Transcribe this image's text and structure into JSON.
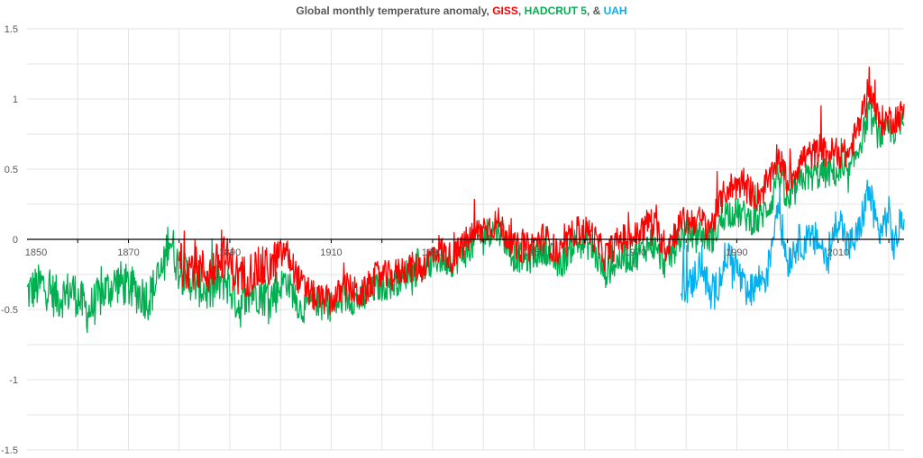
{
  "chart_data": {
    "type": "line",
    "title_parts": [
      {
        "text": "Global monthly temperature anomaly, ",
        "color": "#595959"
      },
      {
        "text": "GISS",
        "color": "#ff0000"
      },
      {
        "text": ", ",
        "color": "#595959"
      },
      {
        "text": "HADCRUT 5",
        "color": "#00b050"
      },
      {
        "text": ", & ",
        "color": "#595959"
      },
      {
        "text": "UAH",
        "color": "#00b0f0"
      }
    ],
    "xlim": [
      1850,
      2023
    ],
    "ylim": [
      -1.5,
      1.5
    ],
    "y_ticks": [
      {
        "value": 1.5,
        "label": "1.5"
      },
      {
        "value": 1,
        "label": "1"
      },
      {
        "value": 0.5,
        "label": "0.5"
      },
      {
        "value": 0,
        "label": "0"
      },
      {
        "value": -0.5,
        "label": "-0.5"
      },
      {
        "value": -1,
        "label": "-1"
      },
      {
        "value": -1.5,
        "label": "-1.5"
      }
    ],
    "x_ticks": [
      {
        "value": 1850,
        "label": "1850"
      },
      {
        "value": 1870,
        "label": "1870"
      },
      {
        "value": 1890,
        "label": "1890"
      },
      {
        "value": 1910,
        "label": "1910"
      },
      {
        "value": 1930,
        "label": "1930"
      },
      {
        "value": 1950,
        "label": "1950"
      },
      {
        "value": 1970,
        "label": "1970"
      },
      {
        "value": 1990,
        "label": "1990"
      },
      {
        "value": 2010,
        "label": "2010"
      }
    ],
    "grid": true,
    "series": [
      {
        "name": "HADCRUT 5",
        "color": "#00b050",
        "x": [
          1850,
          1853,
          1856,
          1859,
          1862,
          1865,
          1868,
          1871,
          1874,
          1877,
          1878,
          1880,
          1883,
          1886,
          1889,
          1892,
          1895,
          1898,
          1901,
          1904,
          1907,
          1910,
          1913,
          1916,
          1919,
          1922,
          1925,
          1928,
          1931,
          1934,
          1937,
          1940,
          1943,
          1946,
          1949,
          1952,
          1955,
          1958,
          1961,
          1964,
          1967,
          1970,
          1973,
          1976,
          1979,
          1982,
          1985,
          1988,
          1991,
          1994,
          1997,
          1998,
          2000,
          2003,
          2006,
          2009,
          2012,
          2015,
          2016,
          2018,
          2021,
          2023
        ],
        "y": [
          -0.38,
          -0.32,
          -0.42,
          -0.36,
          -0.52,
          -0.38,
          -0.3,
          -0.36,
          -0.42,
          -0.2,
          0.04,
          -0.22,
          -0.3,
          -0.38,
          -0.28,
          -0.48,
          -0.36,
          -0.42,
          -0.28,
          -0.5,
          -0.44,
          -0.48,
          -0.42,
          -0.44,
          -0.34,
          -0.32,
          -0.24,
          -0.22,
          -0.14,
          -0.16,
          -0.08,
          0.04,
          0.08,
          -0.12,
          -0.14,
          -0.06,
          -0.2,
          -0.02,
          -0.04,
          -0.24,
          -0.14,
          -0.12,
          -0.02,
          -0.18,
          0.02,
          0.06,
          0.0,
          0.2,
          0.18,
          0.12,
          0.28,
          0.5,
          0.24,
          0.44,
          0.46,
          0.48,
          0.44,
          0.76,
          0.9,
          0.74,
          0.78,
          0.82
        ]
      },
      {
        "name": "GISS",
        "color": "#ff0000",
        "x": [
          1880,
          1883,
          1886,
          1889,
          1892,
          1895,
          1898,
          1901,
          1904,
          1907,
          1910,
          1913,
          1916,
          1919,
          1922,
          1925,
          1928,
          1931,
          1934,
          1937,
          1940,
          1943,
          1946,
          1949,
          1952,
          1955,
          1958,
          1961,
          1964,
          1967,
          1970,
          1973,
          1976,
          1979,
          1982,
          1985,
          1988,
          1991,
          1994,
          1997,
          1998,
          2000,
          2003,
          2006,
          2009,
          2012,
          2015,
          2016,
          2018,
          2021,
          2023
        ],
        "y": [
          -0.18,
          -0.2,
          -0.24,
          -0.12,
          -0.28,
          -0.22,
          -0.2,
          -0.08,
          -0.32,
          -0.42,
          -0.44,
          -0.34,
          -0.4,
          -0.26,
          -0.26,
          -0.2,
          -0.2,
          -0.06,
          -0.14,
          0.0,
          0.08,
          0.12,
          -0.06,
          -0.06,
          0.02,
          -0.12,
          0.06,
          0.06,
          -0.12,
          0.0,
          0.02,
          0.14,
          -0.06,
          0.12,
          0.14,
          0.1,
          0.36,
          0.4,
          0.3,
          0.44,
          0.62,
          0.4,
          0.58,
          0.62,
          0.62,
          0.6,
          0.9,
          1.1,
          0.84,
          0.86,
          0.9
        ]
      },
      {
        "name": "UAH",
        "color": "#00b0f0",
        "x": [
          1979,
          1981,
          1983,
          1985,
          1987,
          1988,
          1990,
          1992,
          1994,
          1996,
          1998,
          2000,
          2002,
          2004,
          2006,
          2008,
          2010,
          2012,
          2014,
          2016,
          2018,
          2020,
          2021,
          2023
        ],
        "y": [
          -0.36,
          -0.32,
          -0.16,
          -0.44,
          -0.24,
          -0.1,
          -0.2,
          -0.42,
          -0.3,
          -0.26,
          0.26,
          -0.16,
          -0.02,
          -0.02,
          0.0,
          -0.16,
          0.18,
          -0.06,
          0.04,
          0.36,
          0.04,
          0.18,
          -0.06,
          0.2
        ]
      }
    ]
  }
}
